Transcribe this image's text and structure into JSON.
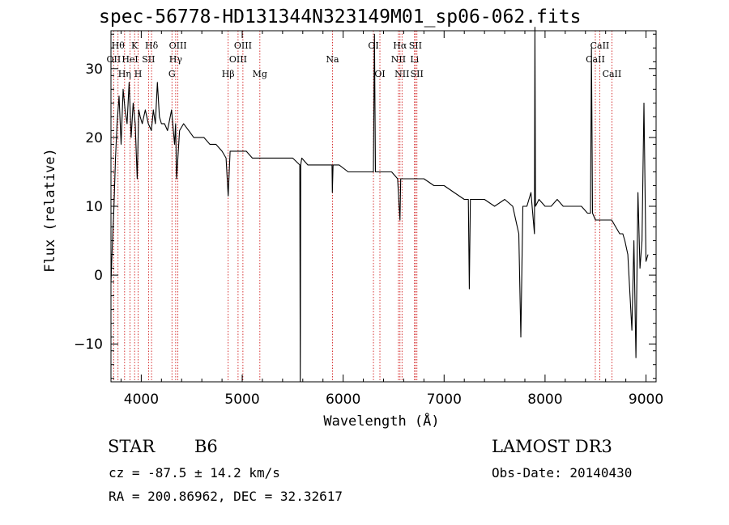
{
  "chart_data": {
    "type": "line",
    "title": "spec-56778-HD131344N323149M01_sp06-062.fits",
    "xlabel": "Wavelength (Å)",
    "ylabel": "Flux (relative)",
    "xlim": [
      3700,
      9100
    ],
    "ylim": [
      -15.5,
      35.5
    ],
    "xticks": [
      4000,
      5000,
      6000,
      7000,
      8000,
      9000
    ],
    "yticks": [
      -10,
      0,
      10,
      20,
      30
    ],
    "series": [
      {
        "name": "spectrum",
        "x": [
          3700,
          3715,
          3730,
          3745,
          3760,
          3780,
          3800,
          3820,
          3840,
          3860,
          3880,
          3900,
          3920,
          3940,
          3960,
          3975,
          3990,
          4010,
          4040,
          4070,
          4100,
          4120,
          4140,
          4160,
          4180,
          4200,
          4230,
          4260,
          4300,
          4330,
          4340,
          4350,
          4380,
          4420,
          4470,
          4520,
          4570,
          4620,
          4680,
          4740,
          4800,
          4840,
          4861,
          4880,
          4920,
          4980,
          5040,
          5100,
          5170,
          5250,
          5330,
          5420,
          5500,
          5570,
          5575,
          5580,
          5590,
          5650,
          5730,
          5810,
          5890,
          5893,
          5900,
          5960,
          6050,
          6140,
          6230,
          6300,
          6310,
          6320,
          6340,
          6400,
          6480,
          6540,
          6555,
          6563,
          6570,
          6600,
          6700,
          6800,
          6900,
          7000,
          7100,
          7200,
          7240,
          7250,
          7260,
          7320,
          7400,
          7500,
          7600,
          7680,
          7740,
          7760,
          7780,
          7820,
          7860,
          7895,
          7900,
          7905,
          7940,
          8000,
          8060,
          8120,
          8180,
          8240,
          8300,
          8360,
          8420,
          8450,
          8460,
          8470,
          8500,
          8540,
          8580,
          8620,
          8660,
          8700,
          8740,
          8770,
          8790,
          8820,
          8860,
          8880,
          8900,
          8920,
          8940,
          8960,
          8980,
          9000,
          9020
        ],
        "y": [
          -1,
          5,
          10,
          17,
          22,
          26,
          19,
          27,
          24,
          22,
          28,
          20,
          25,
          22,
          14,
          24,
          23,
          22,
          24,
          22,
          21,
          24,
          22,
          28,
          23,
          22,
          22,
          21,
          24,
          19,
          22,
          14,
          21,
          22,
          21,
          20,
          20,
          20,
          19,
          19,
          18,
          17,
          11.5,
          18,
          18,
          18,
          18,
          17,
          17,
          17,
          17,
          17,
          17,
          16,
          -15.5,
          16,
          17,
          16,
          16,
          16,
          16,
          12,
          16,
          16,
          15,
          15,
          15,
          15,
          35,
          15,
          15,
          15,
          15,
          14,
          10,
          8,
          14,
          14,
          14,
          14,
          13,
          13,
          12,
          11,
          11,
          -2,
          11,
          11,
          11,
          10,
          11,
          10,
          6,
          -9,
          10,
          10,
          12,
          6,
          36,
          10,
          11,
          10,
          10,
          11,
          10,
          10,
          10,
          10,
          9,
          9,
          33,
          9,
          8,
          8,
          8,
          8,
          8,
          7,
          6,
          6,
          5,
          3,
          -8,
          5,
          -12,
          12,
          1,
          5,
          25,
          2,
          3
        ],
        "color": "#000000"
      }
    ],
    "lines": [
      {
        "label": "OII",
        "x": 3727,
        "row": 2
      },
      {
        "label": "Hθ",
        "x": 3770,
        "row": 1
      },
      {
        "label": "Hη",
        "x": 3835,
        "row": 3
      },
      {
        "label": "K",
        "x": 3934,
        "row": 1
      },
      {
        "label": "H",
        "x": 3969,
        "row": 3
      },
      {
        "label": "HeI",
        "x": 3889,
        "row": 2
      },
      {
        "label": "SII",
        "x": 4072,
        "row": 2
      },
      {
        "label": "Hδ",
        "x": 4102,
        "row": 1
      },
      {
        "label": "G",
        "x": 4304,
        "row": 3
      },
      {
        "label": "Hγ",
        "x": 4341,
        "row": 2
      },
      {
        "label": "OIII",
        "x": 4363,
        "row": 1
      },
      {
        "label": "Hβ",
        "x": 4861,
        "row": 3
      },
      {
        "label": "OIII",
        "x": 4959,
        "row": 2
      },
      {
        "label": "OIII",
        "x": 5007,
        "row": 1
      },
      {
        "label": "Mg",
        "x": 5175,
        "row": 3
      },
      {
        "label": "Na",
        "x": 5894,
        "row": 2
      },
      {
        "label": "OI",
        "x": 6300,
        "row": 1
      },
      {
        "label": "OI",
        "x": 6364,
        "row": 3
      },
      {
        "label": "NII",
        "x": 6548,
        "row": 2
      },
      {
        "label": "Hα",
        "x": 6563,
        "row": 1
      },
      {
        "label": "NII",
        "x": 6583,
        "row": 3
      },
      {
        "label": "Li",
        "x": 6707,
        "row": 2
      },
      {
        "label": "SII",
        "x": 6716,
        "row": 1
      },
      {
        "label": "SII",
        "x": 6731,
        "row": 3
      },
      {
        "label": "CaII",
        "x": 8498,
        "row": 2
      },
      {
        "label": "CaII",
        "x": 8542,
        "row": 1
      },
      {
        "label": "CaII",
        "x": 8662,
        "row": 3
      }
    ]
  },
  "info": {
    "class": "STAR",
    "subclass": "B6",
    "survey": "LAMOST DR3",
    "cz": "cz = -87.5 ± 14.2 km/s",
    "obs_date": "Obs-Date: 20140430",
    "radec": "RA = 200.86962, DEC =  32.32617"
  },
  "colors": {
    "spectrum": "#000000",
    "line_marker": "#cc0000",
    "axes": "#000000"
  }
}
